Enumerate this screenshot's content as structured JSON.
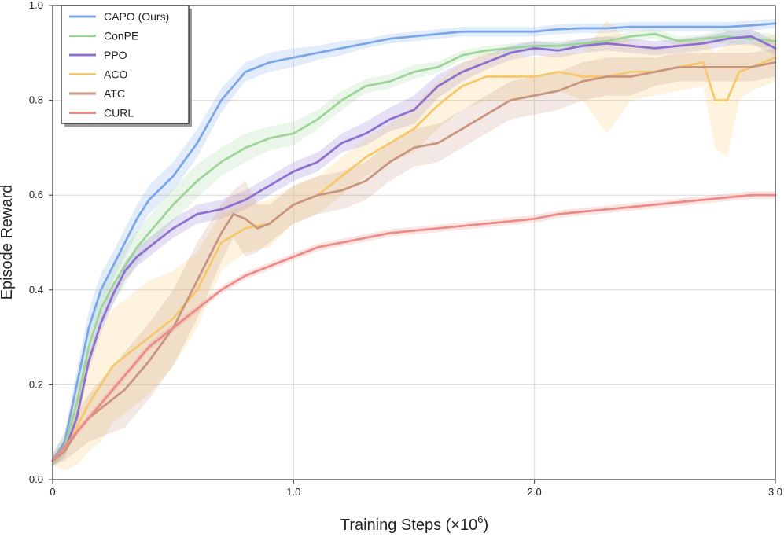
{
  "chart_data": {
    "type": "line",
    "title": "",
    "xlabel": "Training Steps (×10",
    "xlabel_exponent": "6",
    "xlabel_suffix": ")",
    "ylabel": "Episode Reward",
    "xlim": [
      0,
      3.0
    ],
    "ylim": [
      0,
      1.0
    ],
    "grid": true,
    "legend_position": "top-left",
    "x_ticks": [
      {
        "value": 0,
        "label": "0"
      },
      {
        "value": 1.0,
        "label": "1.0"
      },
      {
        "value": 2.0,
        "label": "2.0"
      },
      {
        "value": 3.0,
        "label": "3.0"
      }
    ],
    "y_ticks": [
      {
        "value": 0.0,
        "label": "0.0"
      },
      {
        "value": 0.2,
        "label": "0.2"
      },
      {
        "value": 0.4,
        "label": "0.4"
      },
      {
        "value": 0.6,
        "label": "0.6"
      },
      {
        "value": 0.8,
        "label": "0.8"
      },
      {
        "value": 1.0,
        "label": "1.0"
      }
    ],
    "series": [
      {
        "name": "CAPO (Ours)",
        "color": "#7ba7e8",
        "x": [
          0,
          0.05,
          0.1,
          0.15,
          0.2,
          0.25,
          0.3,
          0.35,
          0.4,
          0.5,
          0.6,
          0.7,
          0.8,
          0.9,
          1.0,
          1.1,
          1.2,
          1.3,
          1.4,
          1.5,
          1.6,
          1.7,
          1.8,
          1.9,
          2.0,
          2.1,
          2.2,
          2.3,
          2.4,
          2.5,
          2.6,
          2.7,
          2.8,
          2.9,
          3.0
        ],
        "y": [
          0.04,
          0.08,
          0.2,
          0.32,
          0.4,
          0.45,
          0.5,
          0.55,
          0.59,
          0.64,
          0.71,
          0.8,
          0.86,
          0.88,
          0.89,
          0.9,
          0.91,
          0.92,
          0.93,
          0.935,
          0.94,
          0.945,
          0.945,
          0.945,
          0.945,
          0.95,
          0.952,
          0.952,
          0.955,
          0.955,
          0.955,
          0.955,
          0.955,
          0.958,
          0.962
        ],
        "band": [
          0.015,
          0.02,
          0.03,
          0.035,
          0.035,
          0.03,
          0.03,
          0.03,
          0.03,
          0.03,
          0.03,
          0.025,
          0.02,
          0.02,
          0.02,
          0.015,
          0.015,
          0.01,
          0.01,
          0.01,
          0.01,
          0.01,
          0.01,
          0.01,
          0.01,
          0.01,
          0.01,
          0.01,
          0.01,
          0.01,
          0.01,
          0.01,
          0.01,
          0.01,
          0.01
        ]
      },
      {
        "name": "ConPE",
        "color": "#9ed49a",
        "x": [
          0,
          0.05,
          0.1,
          0.15,
          0.2,
          0.25,
          0.3,
          0.35,
          0.4,
          0.5,
          0.6,
          0.7,
          0.8,
          0.9,
          1.0,
          1.1,
          1.2,
          1.3,
          1.4,
          1.5,
          1.6,
          1.7,
          1.8,
          1.9,
          2.0,
          2.1,
          2.2,
          2.3,
          2.4,
          2.5,
          2.6,
          2.7,
          2.8,
          2.9,
          3.0
        ],
        "y": [
          0.04,
          0.07,
          0.16,
          0.28,
          0.36,
          0.41,
          0.45,
          0.49,
          0.52,
          0.58,
          0.63,
          0.67,
          0.7,
          0.72,
          0.73,
          0.76,
          0.8,
          0.83,
          0.84,
          0.86,
          0.87,
          0.895,
          0.905,
          0.91,
          0.915,
          0.915,
          0.92,
          0.925,
          0.935,
          0.94,
          0.925,
          0.93,
          0.935,
          0.93,
          0.925
        ],
        "band": [
          0.015,
          0.02,
          0.03,
          0.04,
          0.04,
          0.04,
          0.04,
          0.035,
          0.035,
          0.035,
          0.035,
          0.03,
          0.03,
          0.025,
          0.025,
          0.02,
          0.02,
          0.015,
          0.015,
          0.015,
          0.012,
          0.01,
          0.01,
          0.01,
          0.01,
          0.01,
          0.01,
          0.01,
          0.01,
          0.01,
          0.01,
          0.01,
          0.015,
          0.015,
          0.015
        ]
      },
      {
        "name": "PPO",
        "color": "#8e70cf",
        "x": [
          0,
          0.05,
          0.1,
          0.15,
          0.2,
          0.25,
          0.3,
          0.35,
          0.4,
          0.5,
          0.6,
          0.7,
          0.8,
          0.9,
          1.0,
          1.1,
          1.2,
          1.3,
          1.4,
          1.5,
          1.6,
          1.7,
          1.8,
          1.9,
          2.0,
          2.1,
          2.2,
          2.3,
          2.4,
          2.5,
          2.6,
          2.7,
          2.8,
          2.9,
          3.0
        ],
        "y": [
          0.04,
          0.06,
          0.13,
          0.25,
          0.33,
          0.39,
          0.44,
          0.47,
          0.49,
          0.53,
          0.56,
          0.57,
          0.59,
          0.62,
          0.65,
          0.67,
          0.71,
          0.73,
          0.76,
          0.78,
          0.83,
          0.86,
          0.88,
          0.9,
          0.91,
          0.905,
          0.915,
          0.92,
          0.915,
          0.91,
          0.915,
          0.92,
          0.93,
          0.935,
          0.91
        ],
        "band": [
          0.01,
          0.015,
          0.02,
          0.02,
          0.02,
          0.02,
          0.02,
          0.02,
          0.02,
          0.02,
          0.02,
          0.02,
          0.02,
          0.02,
          0.02,
          0.02,
          0.02,
          0.025,
          0.025,
          0.03,
          0.025,
          0.02,
          0.015,
          0.015,
          0.015,
          0.015,
          0.015,
          0.015,
          0.015,
          0.015,
          0.015,
          0.015,
          0.015,
          0.015,
          0.015
        ]
      },
      {
        "name": "ACO",
        "color": "#f7c86b",
        "x": [
          0,
          0.05,
          0.1,
          0.15,
          0.2,
          0.25,
          0.3,
          0.35,
          0.4,
          0.5,
          0.6,
          0.7,
          0.8,
          0.9,
          1.0,
          1.1,
          1.2,
          1.3,
          1.4,
          1.5,
          1.6,
          1.7,
          1.8,
          1.9,
          2.0,
          2.1,
          2.2,
          2.3,
          2.4,
          2.5,
          2.6,
          2.7,
          2.75,
          2.8,
          2.85,
          2.9,
          3.0
        ],
        "y": [
          0.04,
          0.06,
          0.11,
          0.16,
          0.2,
          0.24,
          0.26,
          0.28,
          0.3,
          0.34,
          0.4,
          0.5,
          0.53,
          0.54,
          0.58,
          0.6,
          0.64,
          0.68,
          0.71,
          0.74,
          0.79,
          0.83,
          0.85,
          0.85,
          0.85,
          0.86,
          0.85,
          0.85,
          0.86,
          0.86,
          0.87,
          0.88,
          0.8,
          0.8,
          0.86,
          0.87,
          0.89
        ],
        "band": [
          0.01,
          0.04,
          0.08,
          0.1,
          0.12,
          0.12,
          0.12,
          0.12,
          0.12,
          0.1,
          0.08,
          0.06,
          0.05,
          0.05,
          0.04,
          0.04,
          0.04,
          0.04,
          0.04,
          0.05,
          0.05,
          0.05,
          0.05,
          0.05,
          0.04,
          0.04,
          0.05,
          0.12,
          0.06,
          0.05,
          0.05,
          0.05,
          0.1,
          0.12,
          0.06,
          0.05,
          0.05
        ]
      },
      {
        "name": "ATC",
        "color": "#c8957e",
        "x": [
          0,
          0.05,
          0.1,
          0.15,
          0.2,
          0.25,
          0.3,
          0.35,
          0.4,
          0.5,
          0.6,
          0.7,
          0.75,
          0.8,
          0.85,
          0.9,
          1.0,
          1.1,
          1.2,
          1.3,
          1.4,
          1.5,
          1.6,
          1.7,
          1.8,
          1.9,
          2.0,
          2.1,
          2.2,
          2.3,
          2.4,
          2.5,
          2.6,
          2.7,
          2.8,
          2.9,
          3.0
        ],
        "y": [
          0.04,
          0.06,
          0.1,
          0.13,
          0.15,
          0.17,
          0.19,
          0.22,
          0.25,
          0.32,
          0.42,
          0.52,
          0.56,
          0.55,
          0.53,
          0.54,
          0.58,
          0.6,
          0.61,
          0.63,
          0.67,
          0.7,
          0.71,
          0.74,
          0.77,
          0.8,
          0.81,
          0.82,
          0.84,
          0.85,
          0.85,
          0.86,
          0.87,
          0.87,
          0.87,
          0.87,
          0.88
        ],
        "band": [
          0.01,
          0.02,
          0.04,
          0.05,
          0.06,
          0.07,
          0.08,
          0.08,
          0.08,
          0.08,
          0.08,
          0.06,
          0.05,
          0.08,
          0.05,
          0.04,
          0.04,
          0.04,
          0.04,
          0.04,
          0.04,
          0.04,
          0.04,
          0.04,
          0.04,
          0.04,
          0.04,
          0.04,
          0.04,
          0.04,
          0.04,
          0.03,
          0.03,
          0.03,
          0.03,
          0.03,
          0.03
        ]
      },
      {
        "name": "CURL",
        "color": "#ec8c88",
        "x": [
          0,
          0.05,
          0.1,
          0.15,
          0.2,
          0.25,
          0.3,
          0.35,
          0.4,
          0.5,
          0.6,
          0.7,
          0.8,
          0.9,
          1.0,
          1.1,
          1.2,
          1.3,
          1.4,
          1.5,
          1.6,
          1.7,
          1.8,
          1.9,
          2.0,
          2.1,
          2.2,
          2.3,
          2.4,
          2.5,
          2.6,
          2.7,
          2.8,
          2.9,
          3.0
        ],
        "y": [
          0.04,
          0.07,
          0.1,
          0.13,
          0.16,
          0.19,
          0.22,
          0.25,
          0.28,
          0.32,
          0.36,
          0.4,
          0.43,
          0.45,
          0.47,
          0.49,
          0.5,
          0.51,
          0.52,
          0.525,
          0.53,
          0.535,
          0.54,
          0.545,
          0.55,
          0.56,
          0.565,
          0.57,
          0.575,
          0.58,
          0.585,
          0.59,
          0.595,
          0.6,
          0.6
        ],
        "band": [
          0.005,
          0.005,
          0.008,
          0.008,
          0.008,
          0.008,
          0.008,
          0.008,
          0.008,
          0.008,
          0.008,
          0.008,
          0.008,
          0.008,
          0.008,
          0.008,
          0.008,
          0.008,
          0.008,
          0.008,
          0.008,
          0.008,
          0.008,
          0.008,
          0.008,
          0.008,
          0.008,
          0.008,
          0.008,
          0.008,
          0.008,
          0.008,
          0.008,
          0.008,
          0.008
        ]
      }
    ]
  }
}
